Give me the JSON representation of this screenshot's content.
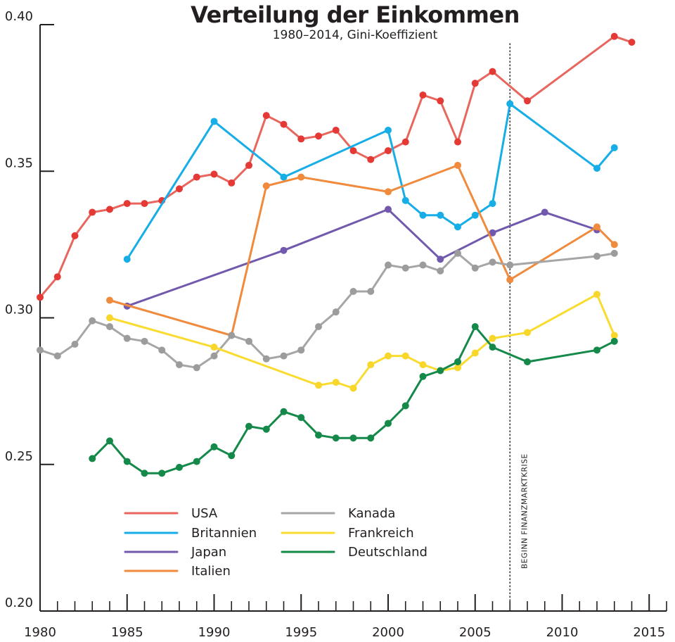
{
  "chart_data": {
    "type": "line",
    "title": "Verteilung der Einkommen",
    "subtitle": "1980–2014, Gini-Koeffizient",
    "xlim": [
      1980,
      2016
    ],
    "ylim": [
      0.2,
      0.4
    ],
    "x_ticks": [
      1980,
      1985,
      1990,
      1995,
      2000,
      2005,
      2010,
      2015
    ],
    "y_ticks": [
      0.2,
      0.25,
      0.3,
      0.35,
      0.4
    ],
    "x_tick_labels": [
      "1980",
      "1985",
      "1990",
      "1995",
      "2000",
      "2005",
      "2010",
      "2015"
    ],
    "y_tick_labels": [
      "0.20",
      "0.25",
      "0.30",
      "0.35",
      "0.40"
    ],
    "grid": false,
    "legend_position": "bottom-left",
    "annotation": {
      "x": 2007,
      "label": "BEGINN FINANZMARKTKRISE"
    },
    "series": [
      {
        "name": "USA",
        "color": "#e8665d",
        "marker_color": "#e53935",
        "points": [
          [
            1980,
            0.307
          ],
          [
            1981,
            0.314
          ],
          [
            1982,
            0.328
          ],
          [
            1983,
            0.336
          ],
          [
            1984,
            0.337
          ],
          [
            1985,
            0.339
          ],
          [
            1986,
            0.339
          ],
          [
            1987,
            0.34
          ],
          [
            1988,
            0.344
          ],
          [
            1989,
            0.348
          ],
          [
            1990,
            0.349
          ],
          [
            1991,
            0.346
          ],
          [
            1992,
            0.352
          ],
          [
            1993,
            0.369
          ],
          [
            1994,
            0.366
          ],
          [
            1995,
            0.361
          ],
          [
            1996,
            0.362
          ],
          [
            1997,
            0.364
          ],
          [
            1998,
            0.357
          ],
          [
            1999,
            0.354
          ],
          [
            2000,
            0.357
          ],
          [
            2001,
            0.36
          ],
          [
            2002,
            0.376
          ],
          [
            2003,
            0.374
          ],
          [
            2004,
            0.36
          ],
          [
            2005,
            0.38
          ],
          [
            2006,
            0.384
          ],
          [
            2008,
            0.374
          ],
          [
            2013,
            0.396
          ],
          [
            2014,
            0.394
          ]
        ]
      },
      {
        "name": "Britannien",
        "color": "#17aee8",
        "marker_color": "#17aee8",
        "points": [
          [
            1985,
            0.32
          ],
          [
            1990,
            0.367
          ],
          [
            1994,
            0.348
          ],
          [
            2000,
            0.364
          ],
          [
            2001,
            0.34
          ],
          [
            2002,
            0.335
          ],
          [
            2003,
            0.335
          ],
          [
            2004,
            0.331
          ],
          [
            2005,
            0.335
          ],
          [
            2006,
            0.339
          ],
          [
            2007,
            0.373
          ],
          [
            2012,
            0.351
          ],
          [
            2013,
            0.358
          ]
        ]
      },
      {
        "name": "Japan",
        "color": "#7159ad",
        "marker_color": "#7159ad",
        "points": [
          [
            1985,
            0.304
          ],
          [
            1994,
            0.323
          ],
          [
            2000,
            0.337
          ],
          [
            2003,
            0.32
          ],
          [
            2006,
            0.329
          ],
          [
            2009,
            0.336
          ],
          [
            2012,
            0.33
          ]
        ]
      },
      {
        "name": "Italien",
        "color": "#f08a3c",
        "marker_color": "#f08a3c",
        "points": [
          [
            1984,
            0.306
          ],
          [
            1991,
            0.294
          ],
          [
            1993,
            0.345
          ],
          [
            1995,
            0.348
          ],
          [
            2000,
            0.343
          ],
          [
            2004,
            0.352
          ],
          [
            2007,
            0.313
          ],
          [
            2012,
            0.331
          ],
          [
            2013,
            0.325
          ]
        ]
      },
      {
        "name": "Kanada",
        "color": "#a6a6a6",
        "marker_color": "#9c9c9c",
        "points": [
          [
            1980,
            0.289
          ],
          [
            1981,
            0.287
          ],
          [
            1982,
            0.291
          ],
          [
            1983,
            0.299
          ],
          [
            1984,
            0.297
          ],
          [
            1985,
            0.293
          ],
          [
            1986,
            0.292
          ],
          [
            1987,
            0.289
          ],
          [
            1988,
            0.284
          ],
          [
            1989,
            0.283
          ],
          [
            1990,
            0.287
          ],
          [
            1991,
            0.294
          ],
          [
            1992,
            0.292
          ],
          [
            1993,
            0.286
          ],
          [
            1994,
            0.287
          ],
          [
            1995,
            0.289
          ],
          [
            1996,
            0.297
          ],
          [
            1997,
            0.302
          ],
          [
            1998,
            0.309
          ],
          [
            1999,
            0.309
          ],
          [
            2000,
            0.318
          ],
          [
            2001,
            0.317
          ],
          [
            2002,
            0.318
          ],
          [
            2003,
            0.316
          ],
          [
            2004,
            0.322
          ],
          [
            2005,
            0.317
          ],
          [
            2006,
            0.319
          ],
          [
            2007,
            0.318
          ],
          [
            2012,
            0.321
          ],
          [
            2013,
            0.322
          ]
        ]
      },
      {
        "name": "Frankreich",
        "color": "#fadb2f",
        "marker_color": "#f8d62a",
        "points": [
          [
            1984,
            0.3
          ],
          [
            1990,
            0.29
          ],
          [
            1996,
            0.277
          ],
          [
            1997,
            0.278
          ],
          [
            1998,
            0.276
          ],
          [
            1999,
            0.284
          ],
          [
            2000,
            0.287
          ],
          [
            2001,
            0.287
          ],
          [
            2002,
            0.284
          ],
          [
            2003,
            0.282
          ],
          [
            2004,
            0.283
          ],
          [
            2005,
            0.288
          ],
          [
            2006,
            0.293
          ],
          [
            2008,
            0.295
          ],
          [
            2012,
            0.308
          ],
          [
            2013,
            0.294
          ]
        ]
      },
      {
        "name": "Deutschland",
        "color": "#15894a",
        "marker_color": "#15894a",
        "points": [
          [
            1983,
            0.252
          ],
          [
            1984,
            0.258
          ],
          [
            1985,
            0.251
          ],
          [
            1986,
            0.247
          ],
          [
            1987,
            0.247
          ],
          [
            1988,
            0.249
          ],
          [
            1989,
            0.251
          ],
          [
            1990,
            0.256
          ],
          [
            1991,
            0.253
          ],
          [
            1992,
            0.263
          ],
          [
            1993,
            0.262
          ],
          [
            1994,
            0.268
          ],
          [
            1995,
            0.266
          ],
          [
            1996,
            0.26
          ],
          [
            1997,
            0.259
          ],
          [
            1998,
            0.259
          ],
          [
            1999,
            0.259
          ],
          [
            2000,
            0.264
          ],
          [
            2001,
            0.27
          ],
          [
            2002,
            0.28
          ],
          [
            2003,
            0.282
          ],
          [
            2004,
            0.285
          ],
          [
            2005,
            0.297
          ],
          [
            2006,
            0.29
          ],
          [
            2008,
            0.285
          ],
          [
            2012,
            0.289
          ],
          [
            2013,
            0.292
          ]
        ]
      }
    ]
  }
}
